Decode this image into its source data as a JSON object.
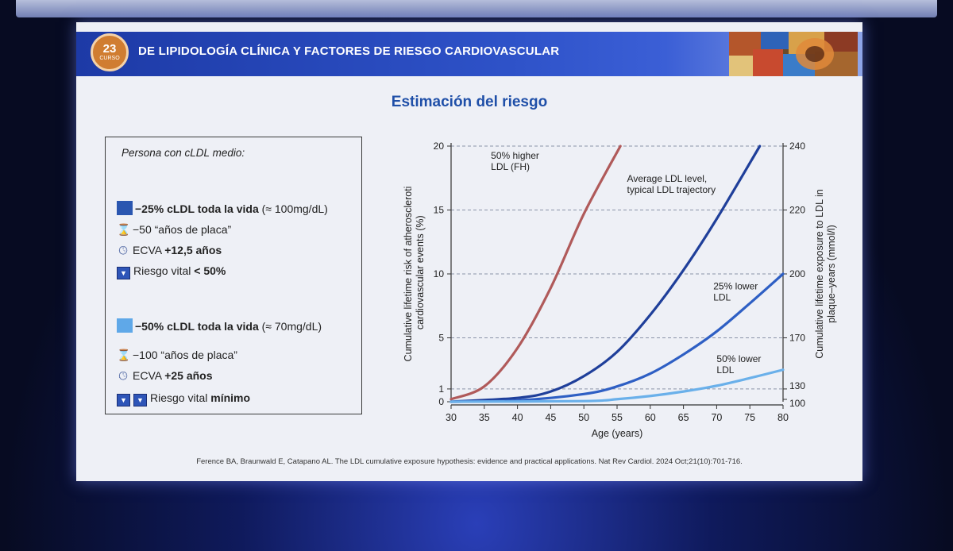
{
  "header": {
    "logo_number": "23",
    "logo_sub": "CURSO",
    "title": "DE LIPIDOLOGÍA CLÍNICA Y FACTORES DE RIESGO CARDIOVASCULAR"
  },
  "slide_title": "Estimación del riesgo",
  "info": {
    "lead": "Persona con cLDL medio:",
    "block1": {
      "color": "#2a56b0",
      "headline_bold": "−25% cLDL toda la vida",
      "headline_rest": " (≈ 100mg/dL)",
      "plaque": "−50 “años de placa”",
      "ecva_label": "ECVA ",
      "ecva_value": "+12,5 años",
      "risk_label": "Riesgo vital ",
      "risk_value": "< 50%"
    },
    "block2": {
      "color": "#5fa8e8",
      "headline_bold": "−50% cLDL toda la vida",
      "headline_rest": " (≈ 70mg/dL)",
      "plaque": "−100 “años de placa”",
      "ecva_label": "ECVA ",
      "ecva_value": "+25 años",
      "risk_label": "Riesgo vital ",
      "risk_value": "mínimo"
    }
  },
  "chart_data": {
    "type": "line",
    "xlabel": "Age (years)",
    "ylabel": "Cumulative lifetime risk of atherosclerotic cardiovascular events (%)",
    "y2label": "Cumulative lifetime exposure to LDL in plaque–years (mmol/l)",
    "xlim": [
      30,
      80
    ],
    "ylim": [
      0,
      20
    ],
    "x_ticks": [
      30,
      35,
      40,
      45,
      50,
      55,
      60,
      65,
      70,
      75,
      80
    ],
    "y_ticks": [
      0,
      1,
      5,
      10,
      15,
      20
    ],
    "y2_ticks": [
      100,
      130,
      170,
      200,
      220,
      240
    ],
    "dashed_gridlines_at_y": [
      1,
      5,
      10,
      15,
      20
    ],
    "series": [
      {
        "name": "50% higher LDL (FH)",
        "label_lines": [
          "50% higher",
          "LDL (FH)"
        ],
        "color": "#b05a5a",
        "x": [
          30,
          35,
          40,
          45,
          50,
          55.5
        ],
        "y": [
          0.2,
          1.2,
          4.2,
          8.9,
          14.7,
          20
        ]
      },
      {
        "name": "Average LDL level, typical LDL trajectory",
        "label_lines": [
          "Average LDL level,",
          "typical LDL trajectory"
        ],
        "color": "#1f3f9a",
        "x": [
          30,
          40,
          45,
          50,
          55,
          60,
          65,
          70,
          76.5
        ],
        "y": [
          0,
          0.3,
          0.8,
          2.0,
          3.9,
          6.8,
          10.3,
          14.3,
          20
        ]
      },
      {
        "name": "25% lower LDL",
        "label_lines": [
          "25% lower",
          "LDL"
        ],
        "color": "#2e5fc4",
        "x": [
          30,
          40,
          50,
          55,
          60,
          65,
          70,
          75,
          80
        ],
        "y": [
          0,
          0.1,
          0.6,
          1.2,
          2.2,
          3.7,
          5.5,
          7.7,
          10
        ]
      },
      {
        "name": "50% lower LDL",
        "label_lines": [
          "50% lower",
          "LDL"
        ],
        "color": "#6ab0ea",
        "x": [
          30,
          50,
          55,
          60,
          65,
          70,
          75,
          80
        ],
        "y": [
          0,
          0.05,
          0.2,
          0.45,
          0.8,
          1.25,
          1.85,
          2.5
        ]
      }
    ],
    "grid": false,
    "legend": "inline labels"
  },
  "citation": "Ference BA, Braunwald E, Catapano AL. The LDL cumulative exposure hypothesis: evidence and practical applications. Nat Rev Cardiol. 2024 Oct;21(10):701-716."
}
